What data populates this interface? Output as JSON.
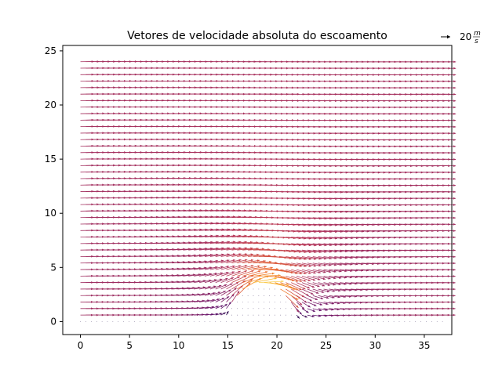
{
  "chart_data": {
    "type": "quiver",
    "title": "Vetores de velocidade absoluta do escoamento",
    "xlabel": "",
    "ylabel": "",
    "xlim": [
      -1.8,
      37.8
    ],
    "ylim": [
      -1.2,
      25.5
    ],
    "xticks": [
      "0",
      "5",
      "10",
      "15",
      "20",
      "25",
      "30",
      "35"
    ],
    "yticks": [
      "0",
      "5",
      "10",
      "15",
      "20",
      "25"
    ],
    "grid": false,
    "colormap": "inferno",
    "free_stream_velocity": 20,
    "obstacle": {
      "shape": "semicircular hump",
      "x_min": 15,
      "x_max": 21.7,
      "top": 6.7
    },
    "grid_spacing": {
      "dx": 0.55,
      "dy": 0.6,
      "x_range": [
        0,
        37
      ],
      "y_range": [
        0,
        24
      ]
    },
    "quiver_key": {
      "value": 20,
      "label_value": "20",
      "label_unit_numerator": "m",
      "label_unit_denominator": "s",
      "position": "top-right"
    },
    "colors": {
      "min": "#1f0c48",
      "mid": "#b6375a",
      "max": "#fcffa4"
    }
  }
}
